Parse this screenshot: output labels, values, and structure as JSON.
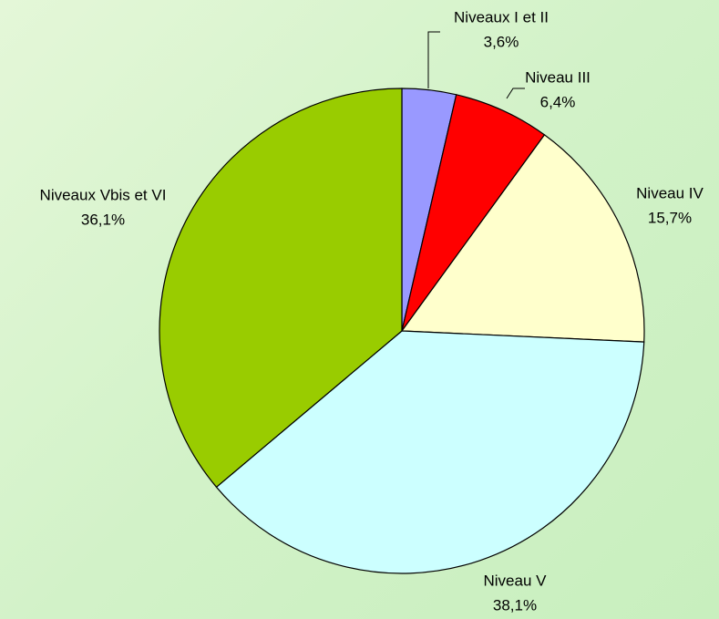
{
  "chart_data": {
    "type": "pie",
    "categories": [
      "Niveaux I et II",
      "Niveau III",
      "Niveau IV",
      "Niveau V",
      "Niveaux Vbis et VI"
    ],
    "values": [
      3.6,
      6.4,
      15.7,
      38.1,
      36.1
    ],
    "value_labels": [
      "3,6%",
      "6,4%",
      "15,7%",
      "38,1%",
      "36,1%"
    ],
    "colors": [
      "#9999ff",
      "#ff0000",
      "#ffffcc",
      "#ccffff",
      "#99cc00"
    ]
  }
}
